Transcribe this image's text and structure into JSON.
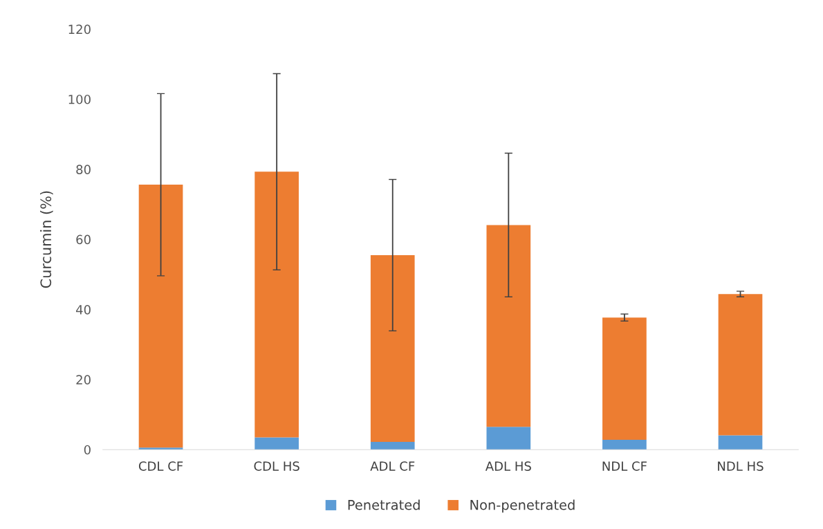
{
  "chart_data": {
    "type": "bar",
    "stacked": true,
    "ylabel": "Curcumin (%)",
    "categories": [
      "CDL CF",
      "CDL HS",
      "ADL CF",
      "ADL HS",
      "NDL CF",
      "NDL HS"
    ],
    "series": [
      {
        "name": "Penetrated",
        "color": "#5b9bd5",
        "values": [
          0.6,
          3.5,
          2.2,
          6.5,
          2.8,
          4.1
        ]
      },
      {
        "name": "Non-penetrated",
        "color": "#ed7d31",
        "values": [
          75.0,
          75.8,
          53.3,
          57.6,
          34.9,
          40.3
        ],
        "errors": [
          26,
          28,
          21.6,
          20.5,
          1,
          0.8
        ]
      }
    ],
    "ylim": [
      0,
      120
    ],
    "yticks": [
      0,
      20,
      40,
      60,
      80,
      100,
      120
    ],
    "grid": false,
    "legend": "bottom"
  }
}
